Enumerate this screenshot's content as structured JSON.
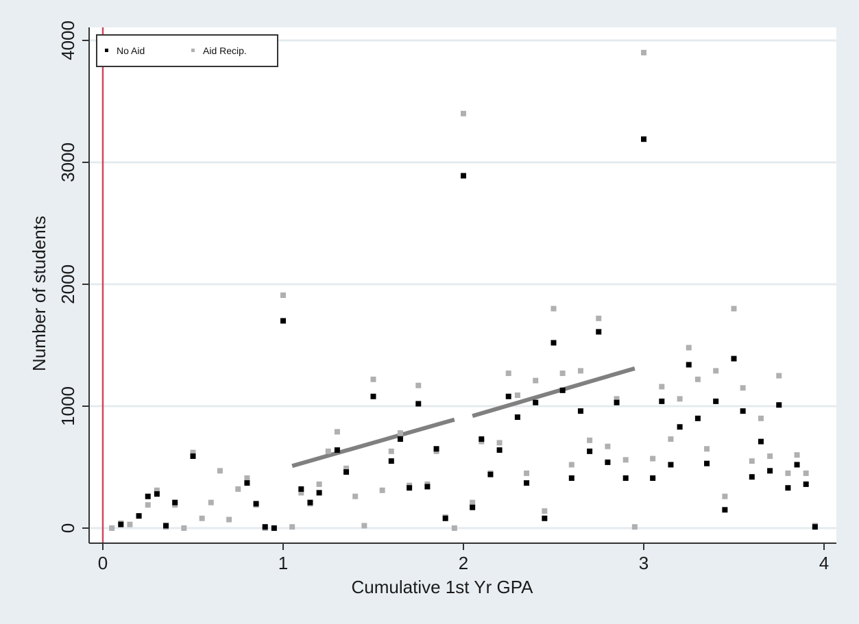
{
  "chart_data": {
    "type": "scatter",
    "title": "",
    "xlabel": "Cumulative 1st Yr GPA",
    "ylabel": "Number of students",
    "xlim": [
      0,
      4
    ],
    "ylim": [
      0,
      4000
    ],
    "x_ticks": [
      0,
      1,
      2,
      3,
      4
    ],
    "y_ticks": [
      0,
      1000,
      2000,
      3000,
      4000
    ],
    "x_tick_labels": [
      "0",
      "1",
      "2",
      "3",
      "4"
    ],
    "y_tick_labels": [
      "0",
      "1000",
      "2000",
      "3000",
      "4000"
    ],
    "grid": "horizontal",
    "legend_position": "top-left",
    "reference_line_x": 0,
    "series": [
      {
        "name": "No Aid",
        "color": "#000000",
        "points": [
          [
            0.1,
            30
          ],
          [
            0.2,
            100
          ],
          [
            0.25,
            260
          ],
          [
            0.3,
            280
          ],
          [
            0.35,
            20
          ],
          [
            0.4,
            210
          ],
          [
            0.5,
            590
          ],
          [
            0.8,
            370
          ],
          [
            0.85,
            200
          ],
          [
            0.9,
            10
          ],
          [
            0.95,
            0
          ],
          [
            1.0,
            1700
          ],
          [
            1.1,
            320
          ],
          [
            1.15,
            210
          ],
          [
            1.2,
            290
          ],
          [
            1.3,
            640
          ],
          [
            1.35,
            460
          ],
          [
            1.5,
            1080
          ],
          [
            1.6,
            550
          ],
          [
            1.65,
            730
          ],
          [
            1.7,
            330
          ],
          [
            1.75,
            1020
          ],
          [
            1.8,
            340
          ],
          [
            1.85,
            650
          ],
          [
            1.9,
            80
          ],
          [
            2.0,
            2890
          ],
          [
            2.05,
            170
          ],
          [
            2.1,
            730
          ],
          [
            2.15,
            440
          ],
          [
            2.2,
            640
          ],
          [
            2.25,
            1080
          ],
          [
            2.3,
            910
          ],
          [
            2.35,
            370
          ],
          [
            2.4,
            1030
          ],
          [
            2.45,
            80
          ],
          [
            2.5,
            1520
          ],
          [
            2.55,
            1130
          ],
          [
            2.6,
            410
          ],
          [
            2.65,
            960
          ],
          [
            2.7,
            630
          ],
          [
            2.75,
            1610
          ],
          [
            2.8,
            540
          ],
          [
            2.85,
            1030
          ],
          [
            2.9,
            410
          ],
          [
            3.0,
            3190
          ],
          [
            3.05,
            410
          ],
          [
            3.1,
            1040
          ],
          [
            3.15,
            520
          ],
          [
            3.2,
            830
          ],
          [
            3.25,
            1340
          ],
          [
            3.3,
            900
          ],
          [
            3.35,
            530
          ],
          [
            3.4,
            1040
          ],
          [
            3.45,
            150
          ],
          [
            3.5,
            1390
          ],
          [
            3.55,
            960
          ],
          [
            3.6,
            420
          ],
          [
            3.65,
            710
          ],
          [
            3.7,
            470
          ],
          [
            3.75,
            1010
          ],
          [
            3.8,
            330
          ],
          [
            3.85,
            520
          ],
          [
            3.9,
            360
          ],
          [
            3.95,
            10
          ]
        ]
      },
      {
        "name": "Aid Recip.",
        "color": "#b0b0b0",
        "points": [
          [
            0.05,
            0
          ],
          [
            0.1,
            40
          ],
          [
            0.15,
            30
          ],
          [
            0.2,
            100
          ],
          [
            0.25,
            190
          ],
          [
            0.3,
            310
          ],
          [
            0.35,
            10
          ],
          [
            0.4,
            190
          ],
          [
            0.45,
            0
          ],
          [
            0.5,
            620
          ],
          [
            0.55,
            80
          ],
          [
            0.6,
            210
          ],
          [
            0.65,
            470
          ],
          [
            0.7,
            70
          ],
          [
            0.75,
            320
          ],
          [
            0.8,
            410
          ],
          [
            0.85,
            190
          ],
          [
            0.9,
            0
          ],
          [
            1.0,
            1910
          ],
          [
            1.05,
            10
          ],
          [
            1.1,
            290
          ],
          [
            1.15,
            200
          ],
          [
            1.2,
            360
          ],
          [
            1.25,
            630
          ],
          [
            1.3,
            790
          ],
          [
            1.35,
            490
          ],
          [
            1.4,
            260
          ],
          [
            1.45,
            20
          ],
          [
            1.5,
            1220
          ],
          [
            1.55,
            310
          ],
          [
            1.6,
            630
          ],
          [
            1.65,
            780
          ],
          [
            1.7,
            350
          ],
          [
            1.75,
            1170
          ],
          [
            1.8,
            360
          ],
          [
            1.85,
            630
          ],
          [
            1.9,
            90
          ],
          [
            1.95,
            0
          ],
          [
            2.0,
            3400
          ],
          [
            2.05,
            210
          ],
          [
            2.1,
            710
          ],
          [
            2.15,
            450
          ],
          [
            2.2,
            700
          ],
          [
            2.25,
            1270
          ],
          [
            2.3,
            1090
          ],
          [
            2.35,
            450
          ],
          [
            2.4,
            1210
          ],
          [
            2.45,
            140
          ],
          [
            2.5,
            1800
          ],
          [
            2.55,
            1270
          ],
          [
            2.6,
            520
          ],
          [
            2.65,
            1290
          ],
          [
            2.7,
            720
          ],
          [
            2.75,
            1720
          ],
          [
            2.8,
            670
          ],
          [
            2.85,
            1060
          ],
          [
            2.9,
            560
          ],
          [
            2.95,
            10
          ],
          [
            3.0,
            3900
          ],
          [
            3.05,
            570
          ],
          [
            3.1,
            1160
          ],
          [
            3.15,
            730
          ],
          [
            3.2,
            1060
          ],
          [
            3.25,
            1480
          ],
          [
            3.3,
            1220
          ],
          [
            3.35,
            650
          ],
          [
            3.4,
            1290
          ],
          [
            3.45,
            260
          ],
          [
            3.5,
            1800
          ],
          [
            3.55,
            1150
          ],
          [
            3.6,
            550
          ],
          [
            3.65,
            900
          ],
          [
            3.7,
            590
          ],
          [
            3.75,
            1250
          ],
          [
            3.8,
            450
          ],
          [
            3.85,
            600
          ],
          [
            3.9,
            450
          ],
          [
            3.95,
            20
          ]
        ]
      }
    ],
    "fit_lines": [
      {
        "color": "#808080",
        "x": [
          1.05,
          1.95
        ],
        "y": [
          510,
          890
        ]
      },
      {
        "color": "#808080",
        "x": [
          2.05,
          2.95
        ],
        "y": [
          920,
          1310
        ]
      }
    ]
  },
  "colors": {
    "outer_background": "#e9eef2",
    "plot_background": "#ffffff",
    "grid": "#e4ebef",
    "axis": "#333333",
    "reference_line": "#d14760"
  }
}
